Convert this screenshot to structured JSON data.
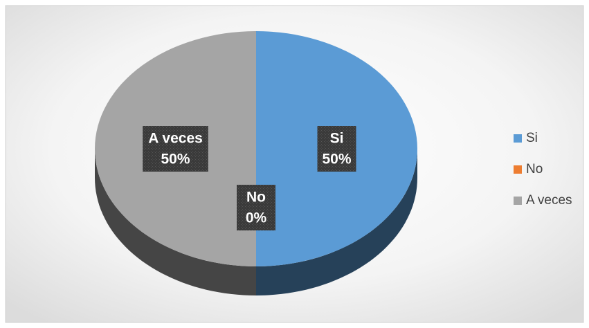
{
  "chart_data": {
    "type": "pie",
    "categories": [
      "Si",
      "No",
      "A veces"
    ],
    "values": [
      50,
      0,
      50
    ],
    "value_labels": [
      "50%",
      "0%",
      "50%"
    ],
    "colors": [
      "#5b9bd5",
      "#ed7d31",
      "#a5a5a5"
    ],
    "legend": "right"
  }
}
